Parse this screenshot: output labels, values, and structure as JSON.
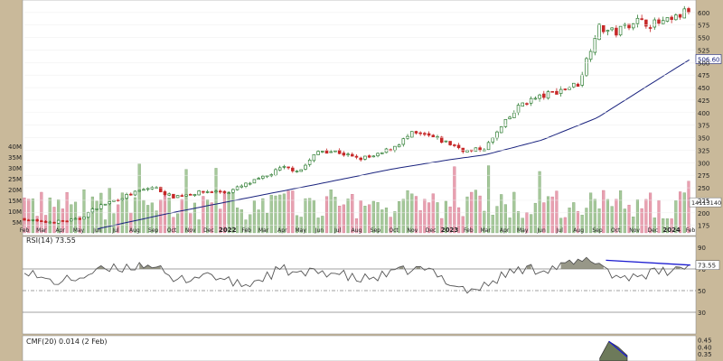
{
  "chart_data": [
    {
      "type": "candlestick",
      "title": "",
      "y_ticks": [
        175,
        200,
        225,
        250,
        275,
        300,
        325,
        350,
        375,
        400,
        425,
        450,
        475,
        500,
        525,
        550,
        575,
        600
      ],
      "ylim": [
        160,
        625
      ],
      "volume_ticks": [
        "5M",
        "10M",
        "15M",
        "20M",
        "25M",
        "30M",
        "35M",
        "40M"
      ],
      "volume_ylim": [
        0,
        45
      ],
      "x_ticks": [
        "Feb",
        "Mar",
        "Apr",
        "May",
        "Jun",
        "Jul",
        "Aug",
        "Sep",
        "Oct",
        "Nov",
        "Dec",
        "2022",
        "Feb",
        "Mar",
        "Apr",
        "May",
        "Jun",
        "Jul",
        "Aug",
        "Sep",
        "Oct",
        "Nov",
        "Dec",
        "2023",
        "Feb",
        "Mar",
        "Apr",
        "May",
        "Jun",
        "Jul",
        "Aug",
        "Sep",
        "Oct",
        "Nov",
        "Dec",
        "2024",
        "Feb"
      ],
      "sma_last_label": "506.60",
      "volume_last_label": "14113140",
      "colors": {
        "up": "#2e7d32",
        "down": "#c62828",
        "volume_up": "#a5c89a",
        "volume_down": "#e8a0b0",
        "sma": "#1a237e"
      },
      "weekly_close_anchors": [
        {
          "date": "2021-02-01",
          "value": 188
        },
        {
          "date": "2021-03-01",
          "value": 181
        },
        {
          "date": "2021-04-01",
          "value": 183
        },
        {
          "date": "2021-05-01",
          "value": 187
        },
        {
          "date": "2021-06-01",
          "value": 212
        },
        {
          "date": "2021-07-01",
          "value": 226
        },
        {
          "date": "2021-08-01",
          "value": 240
        },
        {
          "date": "2021-09-01",
          "value": 252
        },
        {
          "date": "2021-10-01",
          "value": 232
        },
        {
          "date": "2021-11-01",
          "value": 238
        },
        {
          "date": "2021-12-01",
          "value": 243
        },
        {
          "date": "2022-01-01",
          "value": 241
        },
        {
          "date": "2022-02-01",
          "value": 257
        },
        {
          "date": "2022-03-01",
          "value": 270
        },
        {
          "date": "2022-04-01",
          "value": 290
        },
        {
          "date": "2022-05-01",
          "value": 285
        },
        {
          "date": "2022-06-01",
          "value": 325
        },
        {
          "date": "2022-07-01",
          "value": 322
        },
        {
          "date": "2022-08-01",
          "value": 308
        },
        {
          "date": "2022-09-01",
          "value": 312
        },
        {
          "date": "2022-10-01",
          "value": 332
        },
        {
          "date": "2022-11-01",
          "value": 358
        },
        {
          "date": "2022-12-01",
          "value": 352
        },
        {
          "date": "2023-01-01",
          "value": 338
        },
        {
          "date": "2023-02-01",
          "value": 322
        },
        {
          "date": "2023-03-01",
          "value": 330
        },
        {
          "date": "2023-04-01",
          "value": 378
        },
        {
          "date": "2023-05-01",
          "value": 420
        },
        {
          "date": "2023-06-01",
          "value": 432
        },
        {
          "date": "2023-07-01",
          "value": 445
        },
        {
          "date": "2023-08-01",
          "value": 458
        },
        {
          "date": "2023-09-01",
          "value": 570
        },
        {
          "date": "2023-10-01",
          "value": 560
        },
        {
          "date": "2023-11-01",
          "value": 585
        },
        {
          "date": "2023-12-01",
          "value": 577
        },
        {
          "date": "2024-01-01",
          "value": 583
        },
        {
          "date": "2024-02-01",
          "value": 608
        }
      ],
      "sma_anchors": [
        {
          "date": "2021-06-01",
          "value": 168
        },
        {
          "date": "2021-10-01",
          "value": 200
        },
        {
          "date": "2022-01-01",
          "value": 222
        },
        {
          "date": "2022-06-01",
          "value": 258
        },
        {
          "date": "2022-10-01",
          "value": 288
        },
        {
          "date": "2023-01-01",
          "value": 306
        },
        {
          "date": "2023-03-01",
          "value": 316
        },
        {
          "date": "2023-06-01",
          "value": 345
        },
        {
          "date": "2023-09-01",
          "value": 390
        },
        {
          "date": "2023-12-01",
          "value": 460
        },
        {
          "date": "2024-02-01",
          "value": 507
        }
      ]
    },
    {
      "type": "line",
      "label": "RSI(14) 73.55",
      "last_value_label": "73.55",
      "y_ticks": [
        30,
        50,
        70,
        90
      ],
      "ylim": [
        10,
        100
      ],
      "reference_lines": [
        30,
        50,
        70
      ],
      "anchors": [
        {
          "date": "2021-02-01",
          "value": 71
        },
        {
          "date": "2021-03-01",
          "value": 60
        },
        {
          "date": "2021-04-01",
          "value": 58
        },
        {
          "date": "2021-05-01",
          "value": 62
        },
        {
          "date": "2021-06-01",
          "value": 68
        },
        {
          "date": "2021-07-01",
          "value": 70
        },
        {
          "date": "2021-08-01",
          "value": 73
        },
        {
          "date": "2021-09-01",
          "value": 75
        },
        {
          "date": "2021-10-01",
          "value": 58
        },
        {
          "date": "2021-11-01",
          "value": 62
        },
        {
          "date": "2021-12-01",
          "value": 66
        },
        {
          "date": "2022-01-01",
          "value": 58
        },
        {
          "date": "2022-02-01",
          "value": 55
        },
        {
          "date": "2022-03-01",
          "value": 62
        },
        {
          "date": "2022-04-01",
          "value": 70
        },
        {
          "date": "2022-05-01",
          "value": 64
        },
        {
          "date": "2022-06-01",
          "value": 68
        },
        {
          "date": "2022-07-01",
          "value": 66
        },
        {
          "date": "2022-08-01",
          "value": 60
        },
        {
          "date": "2022-09-01",
          "value": 62
        },
        {
          "date": "2022-10-01",
          "value": 66
        },
        {
          "date": "2022-11-01",
          "value": 70
        },
        {
          "date": "2022-12-01",
          "value": 68
        },
        {
          "date": "2023-01-01",
          "value": 58
        },
        {
          "date": "2023-02-01",
          "value": 50
        },
        {
          "date": "2023-03-01",
          "value": 54
        },
        {
          "date": "2023-04-01",
          "value": 65
        },
        {
          "date": "2023-05-01",
          "value": 70
        },
        {
          "date": "2023-06-01",
          "value": 70
        },
        {
          "date": "2023-07-01",
          "value": 72
        },
        {
          "date": "2023-08-01",
          "value": 76
        },
        {
          "date": "2023-09-01",
          "value": 78
        },
        {
          "date": "2023-10-01",
          "value": 62
        },
        {
          "date": "2023-11-01",
          "value": 64
        },
        {
          "date": "2023-12-01",
          "value": 66
        },
        {
          "date": "2024-01-01",
          "value": 68
        },
        {
          "date": "2024-02-01",
          "value": 73.55
        }
      ],
      "divergence_line": [
        {
          "date": "2023-09-15",
          "value": 78
        },
        {
          "date": "2024-02-01",
          "value": 73.55
        }
      ],
      "colors": {
        "line": "#555555",
        "fill": "#7d7d6a",
        "divergence": "#1a1ad0"
      }
    },
    {
      "type": "area",
      "label": "CMF(20) 0.014 (2 Feb)",
      "y_ticks": [
        "0.45",
        "0.40",
        "0.35"
      ],
      "ylim": [
        0.3,
        0.48
      ],
      "anchors": [
        {
          "date": "2023-09-05",
          "value": 0.32
        },
        {
          "date": "2023-09-20",
          "value": 0.44
        },
        {
          "date": "2023-10-05",
          "value": 0.4
        },
        {
          "date": "2023-10-20",
          "value": 0.34
        }
      ],
      "divergence_line": [
        {
          "date": "2023-09-20",
          "value": 0.44
        },
        {
          "date": "2023-10-20",
          "value": 0.33
        }
      ],
      "colors": {
        "fill": "#6d7a5a",
        "divergence": "#1a1ad0"
      }
    }
  ]
}
